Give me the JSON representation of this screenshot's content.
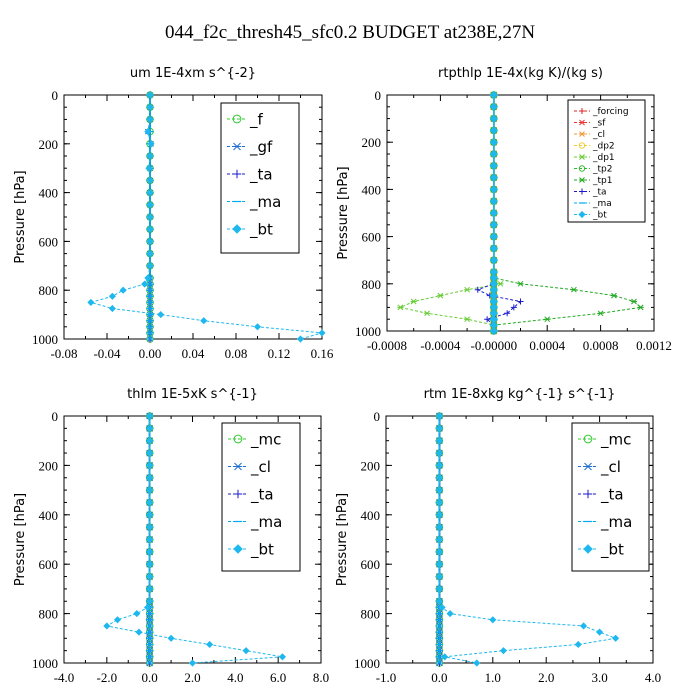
{
  "figure_title": "044_f2c_thresh45_sfc0.2  BUDGET at238E,27N",
  "chart_data": [
    {
      "type": "line",
      "title": "um   1E-4xm s^{-2}",
      "ylabel": "Pressure [hPa]",
      "xlim": [
        -0.08,
        0.16
      ],
      "ylim": [
        1000,
        0
      ],
      "xticks": [
        "-0.08",
        "-0.04",
        "0.00",
        "0.04",
        "0.08",
        "0.12",
        "0.16"
      ],
      "yticks": [
        "0",
        "200",
        "400",
        "600",
        "800",
        "1000"
      ],
      "legend_placement": "top-right",
      "levels": [
        0,
        50,
        100,
        150,
        200,
        250,
        300,
        350,
        400,
        450,
        500,
        550,
        600,
        650,
        700,
        750,
        775,
        800,
        825,
        850,
        875,
        900,
        925,
        950,
        975,
        1000
      ],
      "series": [
        {
          "name": "_f",
          "color": "#33cc33",
          "marker": "circle",
          "values": [
            0,
            0,
            0,
            0,
            0,
            0,
            0,
            0,
            0,
            0,
            0,
            0,
            0,
            0,
            0,
            0,
            0,
            0,
            0,
            0,
            0,
            0,
            0,
            0,
            0,
            0
          ]
        },
        {
          "name": "_gf",
          "color": "#1f6fd1",
          "marker": "star",
          "values": [
            0,
            0,
            0,
            -0.002,
            0.001,
            0,
            0,
            0,
            0,
            0,
            0,
            0,
            0,
            0,
            0,
            0,
            0,
            0,
            0,
            0,
            0,
            0,
            0,
            0,
            0,
            0
          ]
        },
        {
          "name": "_ta",
          "color": "#1a1acc",
          "marker": "plus",
          "values": [
            0,
            0,
            0,
            0,
            0,
            0,
            0,
            0,
            0,
            0,
            0,
            0,
            0,
            0,
            0,
            0,
            0,
            0,
            0,
            0,
            0,
            0,
            0,
            0,
            0,
            0
          ]
        },
        {
          "name": "_ma",
          "color": "#00aaee",
          "marker": "dash",
          "values": [
            0,
            0,
            0,
            0,
            0,
            0,
            0,
            0,
            0,
            0,
            0,
            0,
            0,
            0,
            0,
            0,
            0,
            0,
            0,
            0,
            0,
            0,
            0,
            0,
            0,
            0
          ]
        },
        {
          "name": "_bt",
          "color": "#1fb8ee",
          "marker": "diamond",
          "values": [
            0,
            0,
            0,
            -0.002,
            0.001,
            0,
            -0.001,
            0,
            0,
            0,
            0,
            0,
            0,
            0,
            0,
            -0.002,
            -0.005,
            -0.025,
            -0.035,
            -0.055,
            -0.035,
            0.01,
            0.05,
            0.1,
            0.16,
            0.14
          ]
        }
      ]
    },
    {
      "type": "line",
      "title": "rtpthlp   1E-4x(kg K)/(kg s)",
      "ylabel": "Pressure [hPa]",
      "xlim": [
        -0.0008,
        0.0012
      ],
      "ylim": [
        1000,
        0
      ],
      "xticks": [
        "-0.0008",
        "-0.0004",
        "-0.00000",
        "0.0004",
        "0.0008",
        "0.0012"
      ],
      "yticks": [
        "0",
        "200",
        "400",
        "600",
        "800",
        "1000"
      ],
      "legend_placement": "top-right",
      "levels": [
        0,
        50,
        100,
        150,
        200,
        250,
        300,
        350,
        400,
        450,
        500,
        550,
        600,
        650,
        700,
        750,
        775,
        800,
        825,
        850,
        875,
        900,
        925,
        950,
        975,
        1000
      ],
      "series": [
        {
          "name": "_forcing",
          "color": "#dd2222",
          "marker": "plus",
          "values": [
            0,
            0,
            0,
            0,
            0,
            0,
            0,
            0,
            0,
            0,
            0,
            0,
            0,
            0,
            0,
            0,
            0,
            0,
            0,
            0,
            0,
            0,
            0,
            0,
            0,
            0
          ]
        },
        {
          "name": "_sf",
          "color": "#ee3333",
          "marker": "star",
          "values": [
            0,
            0,
            0,
            0,
            0,
            0,
            0,
            0,
            0,
            0,
            0,
            0,
            0,
            0,
            0,
            0,
            0,
            0,
            0,
            0,
            0,
            0,
            0,
            0,
            0,
            0
          ]
        },
        {
          "name": "_cl",
          "color": "#ee9933",
          "marker": "star",
          "values": [
            0,
            0,
            0,
            0,
            0,
            0,
            0,
            0,
            0,
            0,
            0,
            0,
            0,
            0,
            0,
            0,
            0,
            0,
            0,
            0,
            0,
            0,
            0,
            0,
            0,
            0
          ]
        },
        {
          "name": "_dp2",
          "color": "#eecc33",
          "marker": "circle",
          "values": [
            0,
            0,
            0,
            0,
            0,
            0,
            0,
            0,
            0,
            0,
            0,
            0,
            0,
            0,
            0,
            0,
            0,
            0,
            0,
            0,
            0,
            0,
            0,
            0,
            0,
            0
          ]
        },
        {
          "name": "_dp1",
          "color": "#66cc33",
          "marker": "star",
          "values": [
            0,
            0,
            0,
            0,
            0,
            0,
            0,
            0,
            0,
            0,
            0,
            0,
            0,
            0,
            0,
            0,
            0,
            5e-05,
            -0.0002,
            -0.0004,
            -0.0006,
            -0.0007,
            -0.0005,
            -0.0002,
            0,
            0
          ]
        },
        {
          "name": "_tp2",
          "color": "#33bb33",
          "marker": "circle",
          "values": [
            0,
            0,
            0,
            0,
            0,
            0,
            0,
            0,
            0,
            0,
            0,
            0,
            0,
            0,
            0,
            0,
            0,
            0,
            0,
            0,
            0,
            0,
            0,
            0,
            0,
            0
          ]
        },
        {
          "name": "_tp1",
          "color": "#22aa22",
          "marker": "star",
          "values": [
            0,
            0,
            0,
            0,
            0,
            0,
            0,
            0,
            0,
            0,
            0,
            0,
            0,
            0,
            0,
            0,
            0,
            0.0002,
            0.0006,
            0.0009,
            0.00105,
            0.0011,
            0.0008,
            0.0004,
            0,
            0
          ]
        },
        {
          "name": "_ta",
          "color": "#1a1acc",
          "marker": "plus",
          "values": [
            0,
            0,
            0,
            0,
            0,
            0,
            0,
            0,
            0,
            0,
            0,
            0,
            0,
            0,
            0,
            0,
            0,
            0,
            -0.00012,
            -3e-05,
            0.0002,
            0.00015,
            0.0001,
            -5e-05,
            0,
            0
          ]
        },
        {
          "name": "_ma",
          "color": "#00aaee",
          "marker": "dash",
          "values": [
            0,
            0,
            0,
            0,
            0,
            0,
            0,
            0,
            0,
            0,
            0,
            0,
            0,
            0,
            0,
            0,
            0,
            0,
            0,
            0,
            0,
            0,
            0,
            0,
            0,
            0
          ]
        },
        {
          "name": "_bt",
          "color": "#1fb8ee",
          "marker": "diamond",
          "values": [
            0,
            0,
            0,
            0,
            0,
            0,
            0,
            0,
            0,
            0,
            0,
            0,
            0,
            0,
            0,
            0,
            0,
            0,
            0,
            0,
            0,
            0,
            0,
            0,
            0,
            0
          ]
        }
      ]
    },
    {
      "type": "line",
      "title": "thlm   1E-5xK s^{-1}",
      "ylabel": "Pressure [hPa]",
      "xlim": [
        -4.0,
        8.0
      ],
      "ylim": [
        1000,
        0
      ],
      "xticks": [
        "-4.0",
        "-2.0",
        "0.0",
        "2.0",
        "4.0",
        "6.0",
        "8.0"
      ],
      "yticks": [
        "0",
        "200",
        "400",
        "600",
        "800",
        "1000"
      ],
      "legend_placement": "top-right",
      "levels": [
        0,
        50,
        100,
        150,
        200,
        250,
        300,
        350,
        400,
        450,
        500,
        550,
        600,
        650,
        700,
        750,
        775,
        800,
        825,
        850,
        875,
        900,
        925,
        950,
        975,
        1000
      ],
      "series": [
        {
          "name": "_mc",
          "color": "#33cc33",
          "marker": "circle",
          "values": [
            0,
            0,
            0,
            0,
            0,
            0,
            0,
            0,
            0,
            0,
            0,
            0,
            0,
            0,
            0,
            0,
            0,
            0,
            0,
            0,
            0,
            0,
            0,
            0,
            0,
            0
          ]
        },
        {
          "name": "_cl",
          "color": "#1f6fd1",
          "marker": "star",
          "values": [
            0,
            0,
            0,
            0,
            0,
            0,
            0,
            0,
            0,
            0,
            0,
            0,
            0,
            0,
            0,
            0,
            0,
            0,
            0,
            0,
            0,
            0,
            0,
            0,
            0,
            0
          ]
        },
        {
          "name": "_ta",
          "color": "#1a1acc",
          "marker": "plus",
          "values": [
            0,
            0,
            0,
            0,
            0,
            0,
            0,
            0,
            0,
            0,
            0,
            0,
            0,
            0,
            0,
            0,
            0,
            0,
            0,
            0,
            0,
            0,
            0,
            0,
            0,
            0
          ]
        },
        {
          "name": "_ma",
          "color": "#00aaee",
          "marker": "dash",
          "values": [
            0,
            0,
            0,
            0,
            0,
            0,
            0,
            0,
            0,
            0,
            0,
            0,
            0,
            0,
            0,
            0,
            0,
            0,
            0,
            0,
            0,
            0,
            0,
            0,
            0,
            0
          ]
        },
        {
          "name": "_bt",
          "color": "#1fb8ee",
          "marker": "diamond",
          "values": [
            0,
            0,
            0,
            0,
            0,
            0,
            0,
            0,
            0,
            0,
            0,
            0,
            0,
            0,
            0,
            0,
            -0.1,
            -0.6,
            -1.5,
            -2.0,
            -0.5,
            1.0,
            2.8,
            4.5,
            6.2,
            2.0
          ]
        }
      ]
    },
    {
      "type": "line",
      "title": "rtm   1E-8xkg kg^{-1} s^{-1}",
      "ylabel": "Pressure [hPa]",
      "xlim": [
        -1.0,
        4.0
      ],
      "ylim": [
        1000,
        0
      ],
      "xticks": [
        "-1.0",
        "0.0",
        "1.0",
        "2.0",
        "3.0",
        "4.0"
      ],
      "yticks": [
        "0",
        "200",
        "400",
        "600",
        "800",
        "1000"
      ],
      "legend_placement": "top-right",
      "levels": [
        0,
        50,
        100,
        150,
        200,
        250,
        300,
        350,
        400,
        450,
        500,
        550,
        600,
        650,
        700,
        750,
        775,
        800,
        825,
        850,
        875,
        900,
        925,
        950,
        975,
        1000
      ],
      "series": [
        {
          "name": "_mc",
          "color": "#33cc33",
          "marker": "circle",
          "values": [
            0,
            0,
            0,
            0,
            0,
            0,
            0,
            0,
            0,
            0,
            0,
            0,
            0,
            0,
            0,
            0,
            0,
            0,
            0,
            0,
            0,
            0,
            0,
            0,
            0,
            0
          ]
        },
        {
          "name": "_cl",
          "color": "#1f6fd1",
          "marker": "star",
          "values": [
            0,
            0,
            0,
            0,
            0,
            0,
            0,
            0,
            0,
            0,
            0,
            0,
            0,
            0,
            0,
            0,
            0,
            0,
            0,
            0,
            0,
            0,
            0,
            0,
            0,
            0
          ]
        },
        {
          "name": "_ta",
          "color": "#1a1acc",
          "marker": "plus",
          "values": [
            0,
            0,
            0,
            0,
            0,
            0,
            0,
            0,
            0,
            0,
            0,
            0,
            0,
            0,
            0,
            0,
            0,
            0,
            0,
            0,
            0,
            0,
            0,
            0,
            0,
            0
          ]
        },
        {
          "name": "_ma",
          "color": "#00aaee",
          "marker": "dash",
          "values": [
            0,
            0,
            0,
            0,
            0,
            0,
            0,
            0,
            0,
            0,
            0,
            0,
            0,
            0,
            0,
            0,
            0,
            0,
            0,
            0,
            0,
            0,
            0,
            0,
            0,
            0
          ]
        },
        {
          "name": "_bt",
          "color": "#1fb8ee",
          "marker": "diamond",
          "values": [
            0,
            0,
            0,
            0,
            0,
            0,
            0,
            0,
            0,
            0,
            0,
            0,
            0,
            0,
            0,
            0,
            0.05,
            0.2,
            1.0,
            2.7,
            3.0,
            3.3,
            2.6,
            1.2,
            0.1,
            0.7
          ]
        }
      ]
    }
  ]
}
